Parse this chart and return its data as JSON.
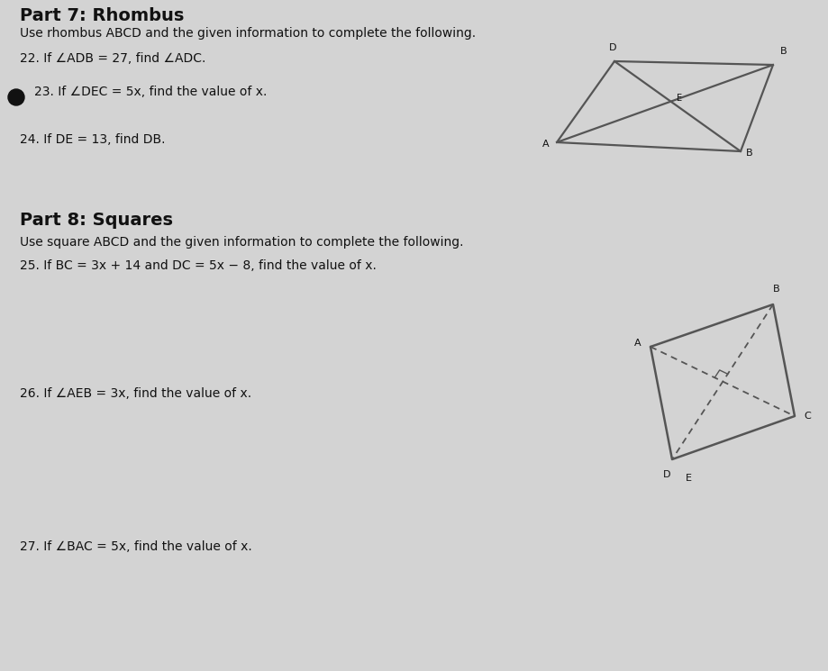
{
  "bg_color": "#d3d3d3",
  "text_color": "#111111",
  "part7_title": "Part 7: Rhombus",
  "part7_subtitle": "Use rhombus ABCD and the given information to complete the following.",
  "q22": "22. If ∠ADB = 27, find ∠ADC.",
  "q23_prefix": "23. If ∠DEC = 5",
  "q23_suffix": ", find the value of ",
  "q24": "24. If DE = 13, find DB.",
  "part8_title": "Part 8: Squares",
  "part8_subtitle": "Use square ABCD and the given information to complete the following.",
  "q25": "25. If BC = 3x + 14 and DC = 5x − 8, find the value of x.",
  "q26": "26. If ∠AEB = 3x, find the value of x.",
  "q27": "27. If ∠BAC = 5x, find the value of x.",
  "shape_color": "#555555",
  "rhombus_lw": 1.6,
  "square_lw": 1.8
}
